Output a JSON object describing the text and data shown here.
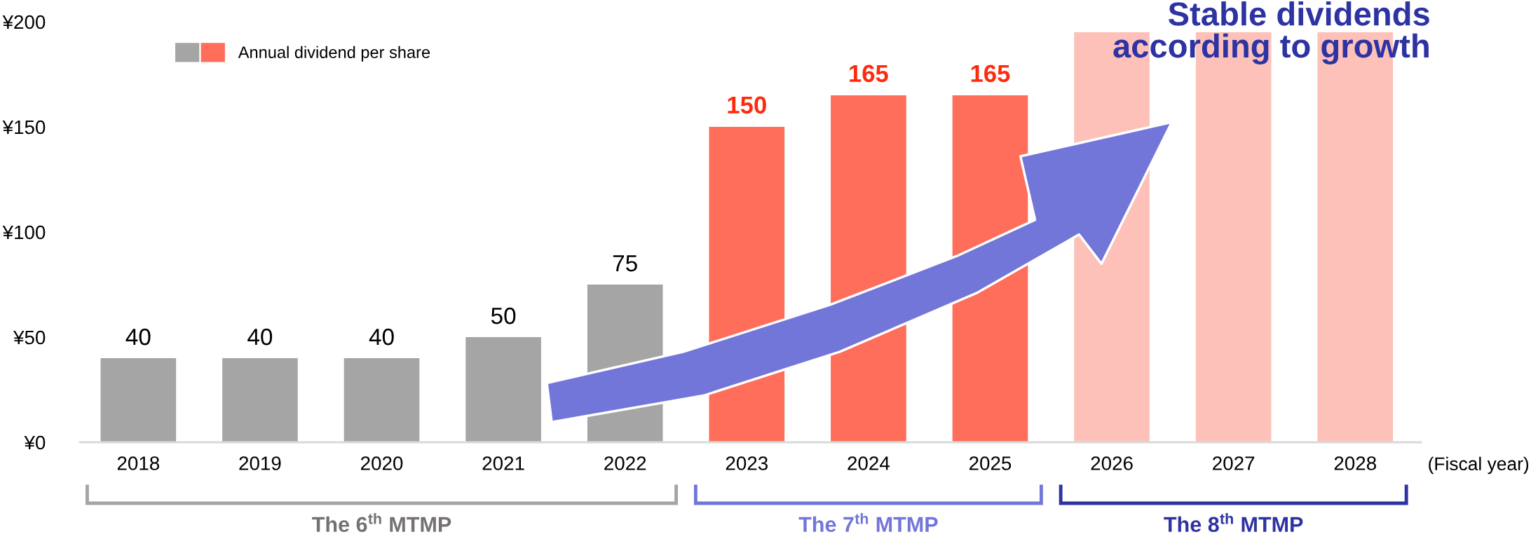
{
  "chart_data": {
    "type": "bar",
    "categories": [
      "2018",
      "2019",
      "2020",
      "2021",
      "2022",
      "2023",
      "2024",
      "2025",
      "2026",
      "2027",
      "2028"
    ],
    "series": [
      {
        "name": "Annual dividend per share",
        "values": [
          40,
          40,
          40,
          50,
          75,
          150,
          165,
          165,
          195,
          195,
          195
        ],
        "colors": [
          "#a5a5a5",
          "#a5a5a5",
          "#a5a5a5",
          "#a5a5a5",
          "#a5a5a5",
          "#ff6e5a",
          "#ff6e5a",
          "#ff6e5a",
          "#fdc1b9",
          "#fdc1b9",
          "#fdc1b9"
        ],
        "value_labels": [
          "40",
          "40",
          "40",
          "50",
          "75",
          "150",
          "165",
          "165",
          null,
          null,
          null
        ]
      }
    ],
    "xlabel": "(Fiscal year)",
    "ylim": [
      0,
      200
    ],
    "yticks": [
      {
        "value": 0,
        "label": "¥0"
      },
      {
        "value": 50,
        "label": "¥50"
      },
      {
        "value": 100,
        "label": "¥100"
      },
      {
        "value": 150,
        "label": "¥150"
      },
      {
        "value": 200,
        "label": "¥200"
      }
    ],
    "grid": false,
    "legend": "top left",
    "annotations": [
      "Stable dividends\naccording to growth",
      "The 6$^{th}$ MTMP",
      "The 7$^{th}$ MTMP",
      "The 8$^{th}$ MTMP"
    ]
  }
}
